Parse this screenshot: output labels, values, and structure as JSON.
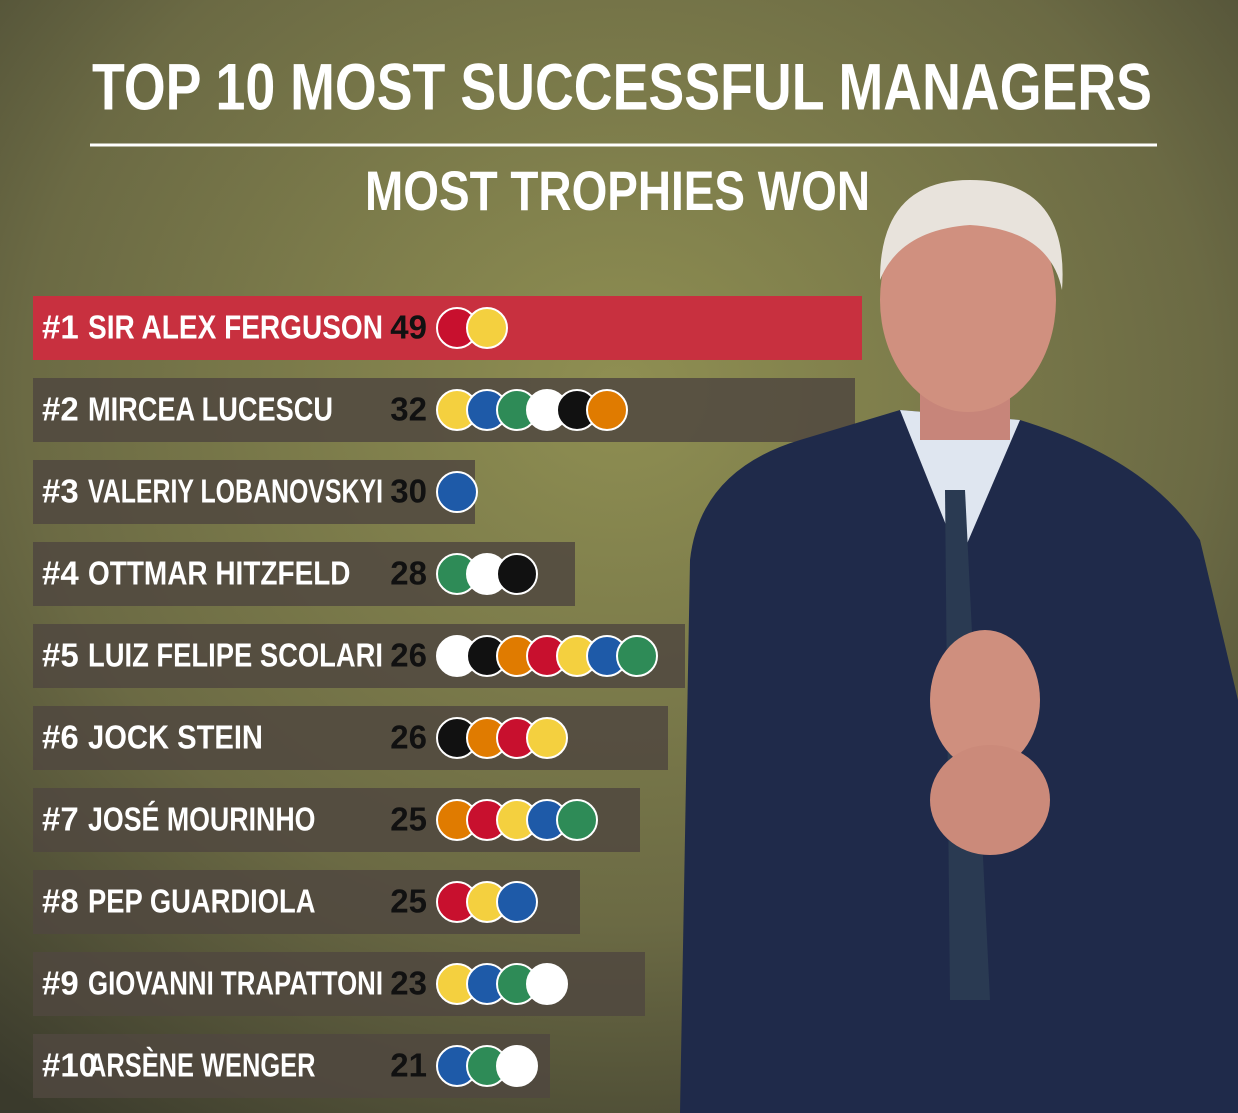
{
  "header": {
    "title": "TOP 10 MOST SUCCESSFUL MANAGERS",
    "subtitle": "MOST TROPHIES WON"
  },
  "rows": [
    {
      "rank": "#1",
      "name": "SIR ALEX FERGUSON",
      "trophies": 49
    },
    {
      "rank": "#2",
      "name": "MIRCEA LUCESCU",
      "trophies": 32
    },
    {
      "rank": "#3",
      "name": "VALERIY LOBANOVSKYI",
      "trophies": 30
    },
    {
      "rank": "#4",
      "name": "OTTMAR HITZFELD",
      "trophies": 28
    },
    {
      "rank": "#5",
      "name": "LUIZ FELIPE SCOLARI",
      "trophies": 26
    },
    {
      "rank": "#6",
      "name": "JOCK STEIN",
      "trophies": 26
    },
    {
      "rank": "#7",
      "name": "JOSÉ MOURINHO",
      "trophies": 25
    },
    {
      "rank": "#8",
      "name": "PEP GUARDIOLA",
      "trophies": 25
    },
    {
      "rank": "#9",
      "name": "GIOVANNI TRAPATTONI",
      "trophies": 23
    },
    {
      "rank": "#10",
      "name": "ARSÈNE WENGER",
      "trophies": 21
    }
  ]
}
